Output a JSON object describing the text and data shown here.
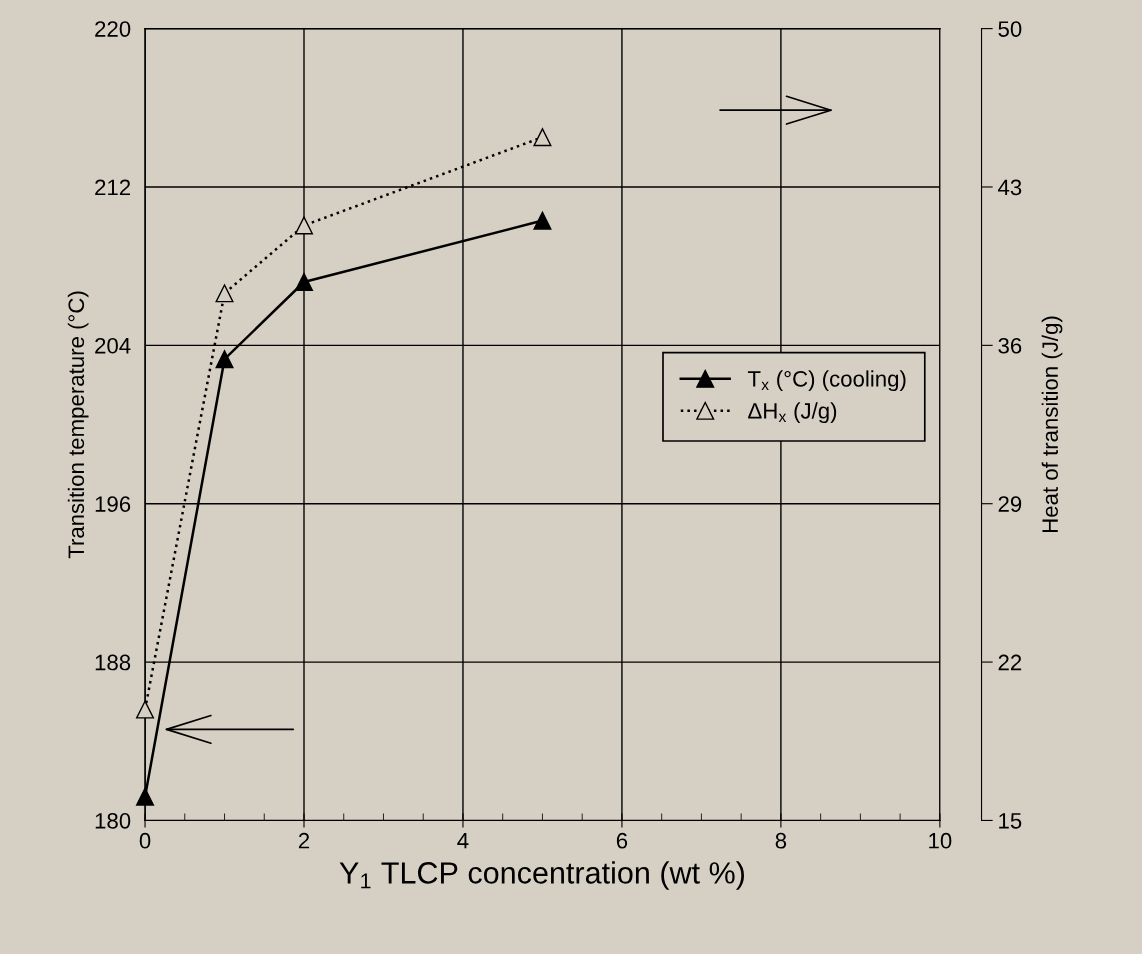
{
  "chart_data": {
    "type": "line",
    "xlabel": "Y$_{1}$ TLCP concentration (wt %)",
    "ylabel": "Transition temperature (°C)",
    "y2label": "Heat of transition (J/g)",
    "x": [
      0,
      1,
      2,
      5
    ],
    "series": [
      {
        "name": "T$_{x}$ (°C) (cooling)",
        "color": "#000000",
        "values": [
          181.2,
          203.3,
          207.2,
          210.3
        ],
        "marker": "triangle",
        "line_style": "solid"
      },
      {
        "name": "ΔH$_{x}$ (J/g)",
        "color": "#000000",
        "values": [
          19.9,
          38.3,
          41.3,
          45.2
        ],
        "axis": "y2",
        "marker": "triangle",
        "line_style": "dotted"
      }
    ],
    "xlim": [
      0,
      10
    ],
    "xticks": [
      0,
      2,
      4,
      6,
      8,
      10
    ],
    "ylim": [
      180,
      220
    ],
    "yticks": [
      180,
      188,
      196,
      204,
      212,
      220
    ],
    "y2lim": [
      15,
      50
    ],
    "y2ticks": [
      15,
      22,
      29,
      36,
      43,
      50
    ],
    "grid": true,
    "legend": "center right"
  }
}
